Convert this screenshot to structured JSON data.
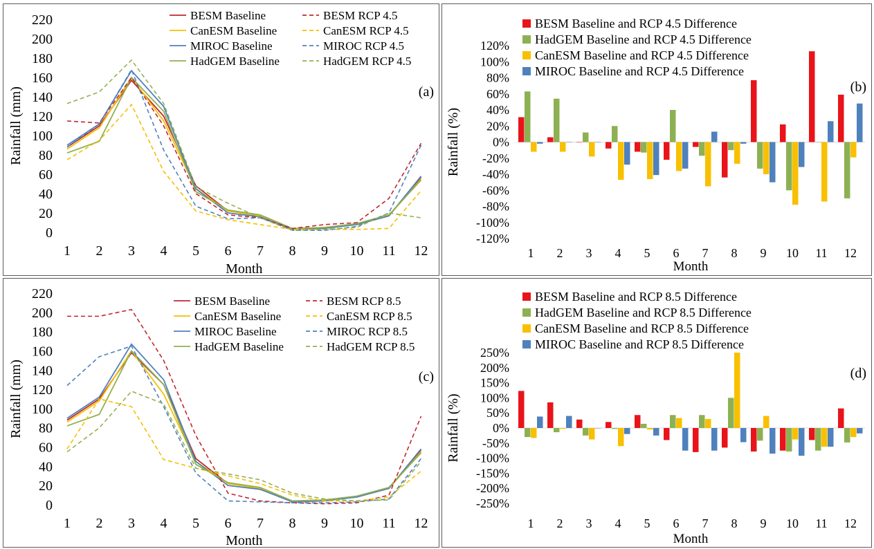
{
  "colors": {
    "BESM": "#c0272d",
    "CanESM": "#f5bf00",
    "MIROC": "#4f81bd",
    "HadGEM": "#92b050",
    "BESM_bar": "#e8141a",
    "HadGEM_bar": "#8db152",
    "CanESM_bar": "#f8c000",
    "MIROC_bar": "#4f81bd"
  },
  "chart_data": [
    {
      "type": "line",
      "panel_label": "(a)",
      "xlabel": "Month",
      "ylabel": "Rainfall (mm)",
      "ylim": [
        0,
        220
      ],
      "yticks": [
        0,
        20,
        40,
        60,
        80,
        100,
        120,
        140,
        160,
        180,
        200,
        220
      ],
      "x": [
        1,
        2,
        3,
        4,
        5,
        6,
        7,
        8,
        9,
        10,
        11,
        12
      ],
      "legend_position": "top-right",
      "series": [
        {
          "name": "BESM Baseline",
          "model": "BESM",
          "dash": false,
          "values": [
            88,
            110,
            157,
            120,
            48,
            22,
            17,
            3,
            5,
            8,
            17,
            57
          ]
        },
        {
          "name": "CanESM Baseline",
          "model": "CanESM",
          "dash": false,
          "values": [
            86,
            108,
            160,
            115,
            45,
            22,
            17,
            3,
            5,
            8,
            17,
            55
          ]
        },
        {
          "name": "MIROC Baseline",
          "model": "MIROC",
          "dash": false,
          "values": [
            90,
            112,
            167,
            130,
            45,
            20,
            16,
            3,
            4,
            8,
            17,
            58
          ]
        },
        {
          "name": "HadGEM Baseline",
          "model": "HadGEM",
          "dash": false,
          "values": [
            82,
            94,
            160,
            125,
            42,
            23,
            18,
            4,
            5,
            9,
            18,
            54
          ]
        },
        {
          "name": "BESM RCP 4.5",
          "model": "BESM",
          "dash": true,
          "values": [
            115,
            113,
            160,
            110,
            40,
            18,
            15,
            4,
            8,
            10,
            35,
            92
          ]
        },
        {
          "name": "CanESM RCP 4.5",
          "model": "CanESM",
          "dash": true,
          "values": [
            75,
            95,
            132,
            63,
            22,
            13,
            8,
            3,
            3,
            3,
            4,
            43
          ]
        },
        {
          "name": "MIROC RCP 4.5",
          "model": "MIROC",
          "dash": true,
          "values": [
            88,
            112,
            168,
            85,
            27,
            14,
            15,
            2,
            2,
            6,
            20,
            90
          ]
        },
        {
          "name": "HadGEM RCP 4.5",
          "model": "HadGEM",
          "dash": true,
          "values": [
            133,
            145,
            178,
            133,
            47,
            30,
            15,
            2,
            3,
            5,
            20,
            15
          ]
        }
      ]
    },
    {
      "type": "bar",
      "panel_label": "(b)",
      "xlabel": "Month",
      "ylabel": "Rainfall (%)",
      "ylim": [
        -120,
        120
      ],
      "yticks": [
        -120,
        -100,
        -80,
        -60,
        -40,
        -20,
        0,
        20,
        40,
        60,
        80,
        100,
        120
      ],
      "categories": [
        "1",
        "2",
        "3",
        "4",
        "5",
        "6",
        "7",
        "8",
        "9",
        "10",
        "11",
        "12"
      ],
      "legend_position": "top",
      "series": [
        {
          "name": "BESM Baseline and RCP 4.5 Difference",
          "model": "BESM",
          "values": [
            31,
            6,
            0,
            -8,
            -12,
            -22,
            -6,
            -44,
            77,
            22,
            113,
            59
          ]
        },
        {
          "name": "HadGEM Baseline and RCP 4.5 Difference",
          "model": "HadGEM",
          "values": [
            63,
            54,
            12,
            20,
            -13,
            40,
            -17,
            -10,
            -33,
            -60,
            0,
            -70
          ]
        },
        {
          "name": "CanESM Baseline and RCP 4.5 Difference",
          "model": "CanESM",
          "values": [
            -12,
            -12,
            -18,
            -47,
            -46,
            -36,
            -55,
            -27,
            -40,
            -78,
            -74,
            -19
          ]
        },
        {
          "name": "MIROC Baseline and RCP 4.5 Difference",
          "model": "MIROC",
          "values": [
            -2,
            0,
            0,
            -28,
            -41,
            -33,
            13,
            -2,
            -50,
            -31,
            26,
            48
          ]
        }
      ]
    },
    {
      "type": "line",
      "panel_label": "(c)",
      "xlabel": "Month",
      "ylabel": "Rainfall (mm)",
      "ylim": [
        0,
        220
      ],
      "yticks": [
        0,
        20,
        40,
        60,
        80,
        100,
        120,
        140,
        160,
        180,
        200,
        220
      ],
      "x": [
        1,
        2,
        3,
        4,
        5,
        6,
        7,
        8,
        9,
        10,
        11,
        12
      ],
      "legend_position": "top-right",
      "series": [
        {
          "name": "BESM Baseline",
          "model": "BESM",
          "dash": false,
          "values": [
            88,
            110,
            158,
            125,
            48,
            22,
            17,
            3,
            5,
            8,
            17,
            57
          ]
        },
        {
          "name": "CanESM Baseline",
          "model": "CanESM",
          "dash": false,
          "values": [
            86,
            108,
            160,
            115,
            45,
            22,
            17,
            3,
            5,
            8,
            17,
            55
          ]
        },
        {
          "name": "MIROC Baseline",
          "model": "MIROC",
          "dash": false,
          "values": [
            90,
            112,
            167,
            130,
            45,
            20,
            16,
            3,
            4,
            8,
            17,
            58
          ]
        },
        {
          "name": "HadGEM Baseline",
          "model": "HadGEM",
          "dash": false,
          "values": [
            82,
            94,
            160,
            125,
            42,
            23,
            18,
            4,
            5,
            9,
            18,
            54
          ]
        },
        {
          "name": "BESM RCP 8.5",
          "model": "BESM",
          "dash": true,
          "values": [
            196,
            196,
            203,
            150,
            72,
            12,
            4,
            2,
            1,
            2,
            10,
            92
          ]
        },
        {
          "name": "CanESM RCP 8.5",
          "model": "CanESM",
          "dash": true,
          "values": [
            58,
            110,
            102,
            47,
            38,
            30,
            22,
            10,
            4,
            4,
            8,
            35
          ]
        },
        {
          "name": "MIROC RCP 8.5",
          "model": "MIROC",
          "dash": true,
          "values": [
            124,
            154,
            165,
            102,
            33,
            4,
            3,
            2,
            2,
            3,
            6,
            48
          ]
        },
        {
          "name": "HadGEM RCP  8.5",
          "model": "HadGEM",
          "dash": true,
          "values": [
            55,
            80,
            118,
            105,
            38,
            32,
            26,
            12,
            6,
            4,
            5,
            45
          ]
        }
      ]
    },
    {
      "type": "bar",
      "panel_label": "(d)",
      "xlabel": "Month",
      "ylabel": "Rainfall (%)",
      "ylim": [
        -250,
        250
      ],
      "yticks": [
        -250,
        -200,
        -150,
        -100,
        -50,
        0,
        50,
        100,
        150,
        200,
        250
      ],
      "categories": [
        "1",
        "2",
        "3",
        "4",
        "5",
        "6",
        "7",
        "8",
        "9",
        "10",
        "11",
        "12"
      ],
      "legend_position": "top",
      "series": [
        {
          "name": "BESM Baseline and RCP 8.5 Difference",
          "model": "BESM",
          "values": [
            123,
            85,
            28,
            20,
            43,
            -40,
            -80,
            -65,
            -78,
            -75,
            -40,
            65
          ]
        },
        {
          "name": "HadGEM Baseline and RCP 8.5 Difference",
          "model": "HadGEM",
          "values": [
            -30,
            -14,
            -25,
            -3,
            14,
            43,
            43,
            100,
            -42,
            -78,
            -75,
            -48
          ]
        },
        {
          "name": "CanESM Baseline and RCP 8.5 Difference",
          "model": "CanESM",
          "values": [
            -33,
            -3,
            -38,
            -60,
            -5,
            33,
            30,
            250,
            40,
            -38,
            -62,
            -30
          ]
        },
        {
          "name": "MIROC Baseline and RCP 8.5 Difference",
          "model": "MIROC",
          "values": [
            38,
            40,
            0,
            -20,
            -25,
            -75,
            -75,
            -47,
            -85,
            -92,
            -62,
            -18
          ]
        }
      ]
    }
  ]
}
